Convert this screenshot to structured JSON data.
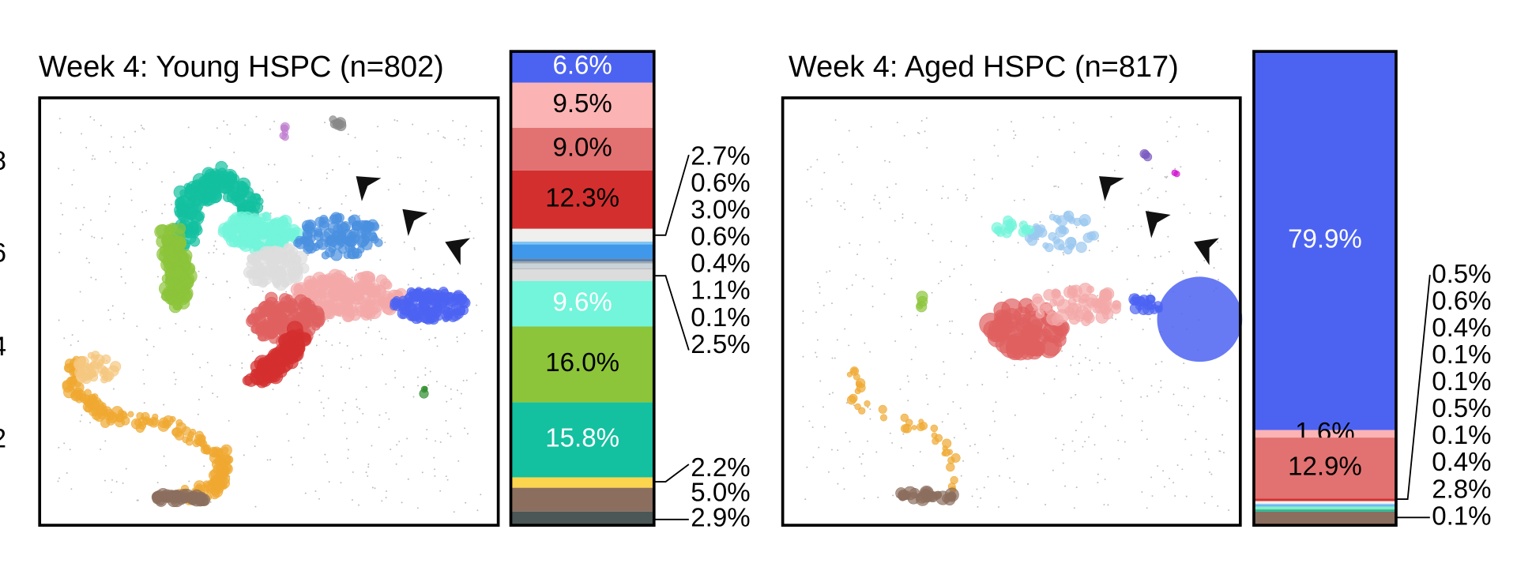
{
  "edge_labels": [
    "8",
    "6",
    "4",
    "2"
  ],
  "chart_data": [
    {
      "type": "stacked-bar",
      "title": "Week 4: Young HSPC (n=802)",
      "values": [
        6.6,
        9.5,
        9.0,
        12.3,
        2.7,
        0.6,
        3.0,
        0.6,
        0.4,
        1.1,
        0.1,
        2.5,
        9.6,
        16.0,
        15.8,
        2.2,
        5.0,
        2.9
      ],
      "value_labels": [
        "6.6%",
        "9.5%",
        "9.0%",
        "12.3%",
        "2.7%",
        "0.6%",
        "3.0%",
        "0.6%",
        "0.4%",
        "1.1%",
        "0.1%",
        "2.5%",
        "9.6%",
        "16.0%",
        "15.8%",
        "2.2%",
        "5.0%",
        "2.9%"
      ],
      "colors": [
        "#4c63f2",
        "#fbb3b3",
        "#e27171",
        "#d42f2f",
        "#efefed",
        "#7fc4f4",
        "#4098ea",
        "#5b7fa8",
        "#9aa4ac",
        "#c8d2d8",
        "#888888",
        "#dcdcdc",
        "#72f5da",
        "#8cc43a",
        "#13c0a0",
        "#fbd54d",
        "#8c6e5e",
        "#4b5757"
      ]
    },
    {
      "type": "stacked-bar",
      "title": "Week 4: Aged HSPC (n=817)",
      "values": [
        79.9,
        1.6,
        12.9,
        0.5,
        0.6,
        0.4,
        0.1,
        0.1,
        0.5,
        0.1,
        0.4,
        2.8,
        0.1
      ],
      "value_labels": [
        "79.9%",
        "1.6%",
        "12.9%",
        "0.5%",
        "0.6%",
        "0.4%",
        "0.1%",
        "0.1%",
        "0.5%",
        "0.1%",
        "0.4%",
        "2.8%",
        "0.1%"
      ],
      "colors": [
        "#4c63f2",
        "#fbb3b3",
        "#e27171",
        "#d42f2f",
        "#efefed",
        "#7fc4f4",
        "#4098ea",
        "#9aa4ac",
        "#72f5da",
        "#8cc43a",
        "#13c0a0",
        "#8c6e5e",
        "#4b5757"
      ]
    }
  ]
}
